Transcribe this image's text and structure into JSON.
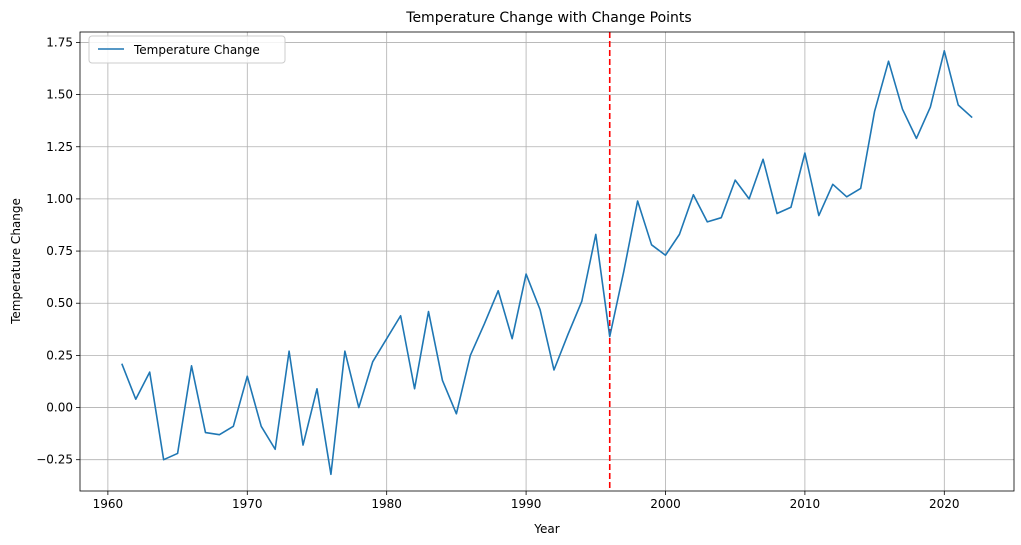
{
  "chart_data": {
    "type": "line",
    "title": "Temperature Change with Change Points",
    "xlabel": "Year",
    "ylabel": "Temperature Change",
    "xlim": [
      1958,
      2025
    ],
    "ylim": [
      -0.4,
      1.8
    ],
    "xticks": [
      1960,
      1970,
      1980,
      1990,
      2000,
      2010,
      2020
    ],
    "yticks": [
      -0.25,
      0.0,
      0.25,
      0.5,
      0.75,
      1.0,
      1.25,
      1.5,
      1.75
    ],
    "ytick_labels": [
      "−0.25",
      "0.00",
      "0.25",
      "0.50",
      "0.75",
      "1.00",
      "1.25",
      "1.50",
      "1.75"
    ],
    "grid": true,
    "legend_position": "top-left",
    "series": [
      {
        "name": "Temperature Change",
        "color": "#1f77b4",
        "x": [
          1961,
          1962,
          1963,
          1964,
          1965,
          1966,
          1967,
          1968,
          1969,
          1970,
          1971,
          1972,
          1973,
          1974,
          1975,
          1976,
          1977,
          1978,
          1979,
          1980,
          1981,
          1982,
          1983,
          1984,
          1985,
          1986,
          1987,
          1988,
          1989,
          1990,
          1991,
          1992,
          1993,
          1994,
          1995,
          1996,
          1997,
          1998,
          1999,
          2000,
          2001,
          2002,
          2003,
          2004,
          2005,
          2006,
          2007,
          2008,
          2009,
          2010,
          2011,
          2012,
          2013,
          2014,
          2015,
          2016,
          2017,
          2018,
          2019,
          2020,
          2021,
          2022
        ],
        "y": [
          0.21,
          0.04,
          0.17,
          -0.25,
          -0.22,
          0.2,
          -0.12,
          -0.13,
          -0.09,
          0.15,
          -0.09,
          -0.2,
          0.27,
          -0.18,
          0.09,
          -0.32,
          0.27,
          0.0,
          0.22,
          0.33,
          0.44,
          0.09,
          0.46,
          0.13,
          -0.03,
          0.25,
          0.4,
          0.56,
          0.33,
          0.64,
          0.47,
          0.18,
          0.35,
          0.51,
          0.83,
          0.34,
          0.65,
          0.99,
          0.78,
          0.73,
          0.83,
          1.02,
          0.89,
          0.91,
          1.09,
          1.0,
          1.19,
          0.93,
          0.96,
          1.22,
          0.92,
          1.07,
          1.01,
          1.05,
          1.42,
          1.66,
          1.43,
          1.29,
          1.44,
          1.71,
          1.45,
          1.39
        ]
      }
    ],
    "change_points": [
      {
        "x": 1996,
        "color": "#ff0000",
        "style": "dashed"
      }
    ]
  }
}
